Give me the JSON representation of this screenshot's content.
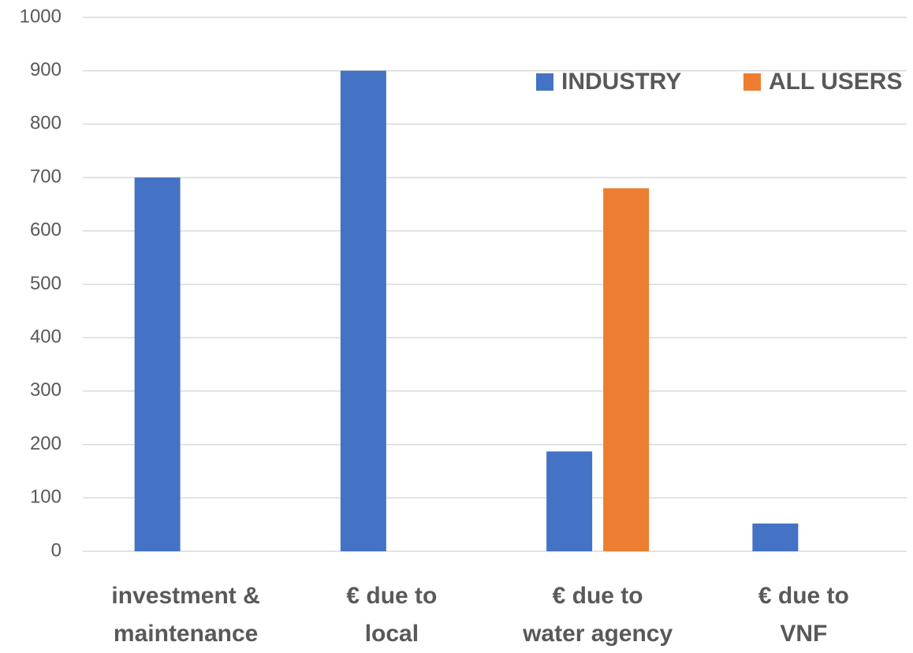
{
  "chart_data": {
    "type": "bar",
    "categories": [
      "investment &\nmaintenance",
      "€ due to\nlocal",
      "€ due to\nwater agency",
      "€ due to\nVNF"
    ],
    "series": [
      {
        "name": "INDUSTRY",
        "color": "#4472c4",
        "values": [
          700,
          900,
          187,
          52
        ]
      },
      {
        "name": "ALL USERS",
        "color": "#ed7d31",
        "values": [
          null,
          null,
          680,
          null
        ]
      }
    ],
    "ylim": [
      0,
      1000
    ],
    "yticks": [
      0,
      100,
      200,
      300,
      400,
      500,
      600,
      700,
      800,
      900,
      1000
    ],
    "grid": true,
    "legend": "top-right"
  }
}
